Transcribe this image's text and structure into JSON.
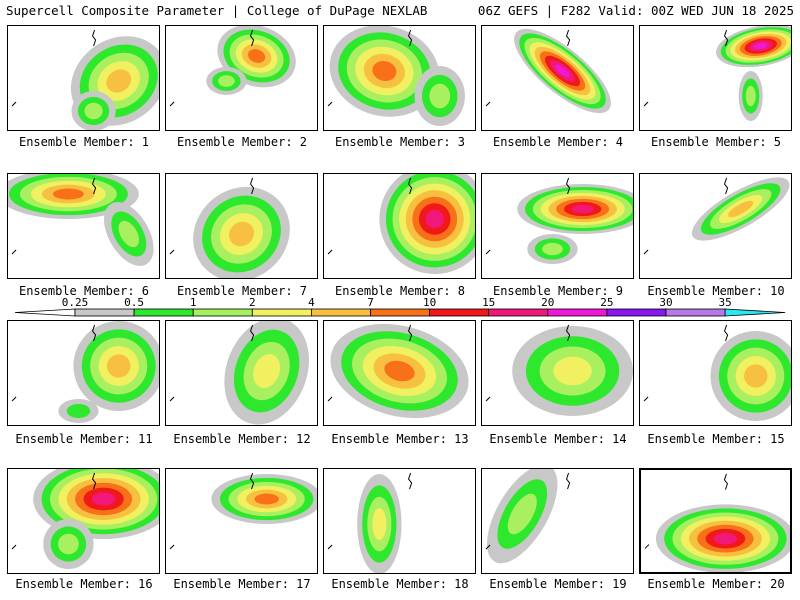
{
  "header": {
    "title": "Supercell Composite Parameter | College of DuPage NEXLAB",
    "run_info": "06Z GEFS | F282 Valid: 00Z WED JUN 18 2025"
  },
  "colorbar": {
    "ticks": [
      "0.25",
      "0.5",
      "1",
      "2",
      "4",
      "7",
      "10",
      "15",
      "20",
      "25",
      "30",
      "35"
    ],
    "colors": [
      "#c8c8c8",
      "#2ee82e",
      "#a8f060",
      "#f0f060",
      "#f8c040",
      "#f87018",
      "#f01818",
      "#f01878",
      "#f018d8",
      "#8818f0",
      "#b878e8",
      "#28e8f0"
    ]
  },
  "members": [
    {
      "label": "Ensemble Member: 1"
    },
    {
      "label": "Ensemble Member: 2"
    },
    {
      "label": "Ensemble Member: 3"
    },
    {
      "label": "Ensemble Member: 4"
    },
    {
      "label": "Ensemble Member: 5"
    },
    {
      "label": "Ensemble Member: 6"
    },
    {
      "label": "Ensemble Member: 7"
    },
    {
      "label": "Ensemble Member: 8"
    },
    {
      "label": "Ensemble Member: 9"
    },
    {
      "label": "Ensemble Member: 10"
    },
    {
      "label": "Ensemble Member: 11"
    },
    {
      "label": "Ensemble Member: 12"
    },
    {
      "label": "Ensemble Member: 13"
    },
    {
      "label": "Ensemble Member: 14"
    },
    {
      "label": "Ensemble Member: 15"
    },
    {
      "label": "Ensemble Member: 16"
    },
    {
      "label": "Ensemble Member: 17"
    },
    {
      "label": "Ensemble Member: 18"
    },
    {
      "label": "Ensemble Member: 19"
    },
    {
      "label": "Ensemble Member: 20"
    }
  ]
}
